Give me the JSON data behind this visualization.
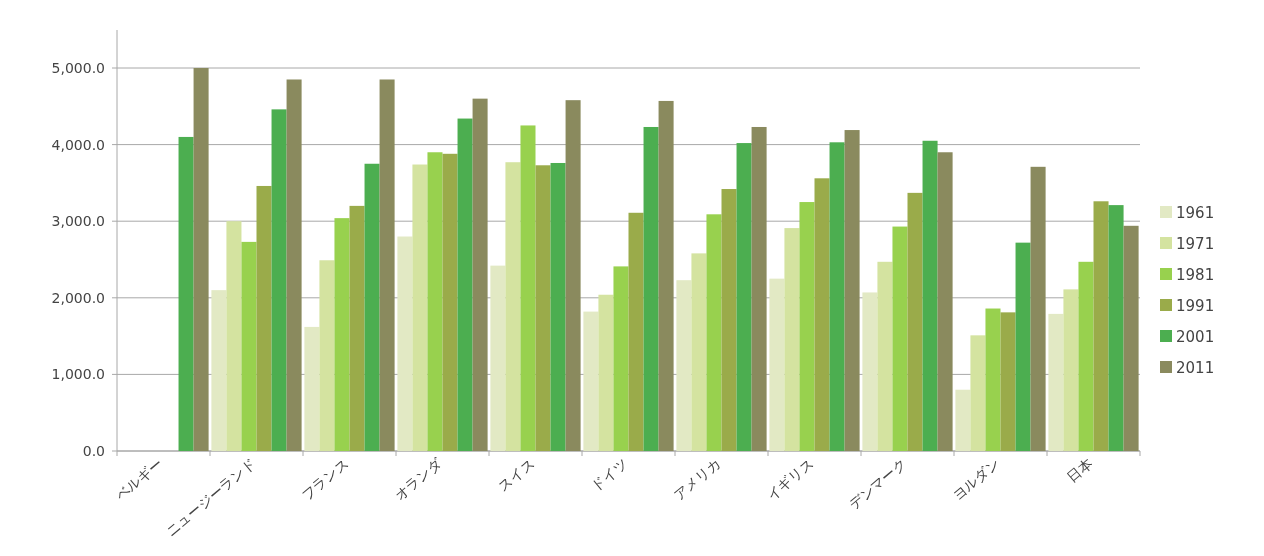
{
  "chart_data": {
    "type": "bar",
    "categories": [
      "ベルギー",
      "ニュージーランド",
      "フランス",
      "オランダ",
      "スイス",
      "ドイツ",
      "アメリカ",
      "イギリス",
      "デンマーク",
      "ヨルダン",
      "日本"
    ],
    "series": [
      {
        "name": "1961",
        "color": "#e2e9c4",
        "values": [
          null,
          2100,
          1620,
          2800,
          2420,
          1820,
          2230,
          2250,
          2070,
          800,
          1790
        ]
      },
      {
        "name": "1971",
        "color": "#d4e3a0",
        "values": [
          null,
          3000,
          2490,
          3740,
          3770,
          2040,
          2580,
          2910,
          2470,
          1510,
          2110
        ]
      },
      {
        "name": "1981",
        "color": "#98d14e",
        "values": [
          null,
          2730,
          3040,
          3900,
          4250,
          2410,
          3090,
          3250,
          2930,
          1860,
          2470
        ]
      },
      {
        "name": "1991",
        "color": "#9aab4a",
        "values": [
          null,
          3460,
          3200,
          3880,
          3730,
          3110,
          3420,
          3560,
          3370,
          1810,
          3260
        ]
      },
      {
        "name": "2001",
        "color": "#4cae50",
        "values": [
          4100,
          4460,
          3750,
          4340,
          3760,
          4230,
          4020,
          4030,
          4050,
          2720,
          3210
        ]
      },
      {
        "name": "2011",
        "color": "#8a8a5e",
        "values": [
          5000,
          4850,
          4850,
          4600,
          4580,
          4570,
          4230,
          4190,
          3900,
          3710,
          2940
        ]
      }
    ],
    "ylim": [
      0,
      5000
    ],
    "yticks": [
      {
        "value": 0,
        "label": "0.0"
      },
      {
        "value": 1000,
        "label": "1,000.0"
      },
      {
        "value": 2000,
        "label": "2,000.0"
      },
      {
        "value": 3000,
        "label": "3,000.0"
      },
      {
        "value": 4000,
        "label": "4,000.0"
      },
      {
        "value": 5000,
        "label": "5,000.0"
      }
    ],
    "grid": "y",
    "legend": "right"
  }
}
